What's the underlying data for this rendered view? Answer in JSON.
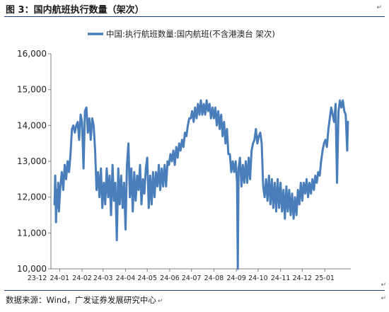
{
  "figure": {
    "title": "图 3：国内航班执行数量（架次）",
    "source": "数据来源：Wind，广发证券发展研究中心",
    "para_mark": "↵"
  },
  "chart_data": {
    "type": "line",
    "series": [
      {
        "name": "中国:执行航班数量:国内航班(不含港澳台 架次)",
        "color": "#4a7ebb",
        "points": [
          [
            "2023-12-25",
            11800
          ],
          [
            "2023-12-26",
            12600
          ],
          [
            "2023-12-27",
            11300
          ],
          [
            "2023-12-28",
            12200
          ],
          [
            "2023-12-29",
            11700
          ],
          [
            "2023-12-30",
            12400
          ],
          [
            "2023-12-31",
            11600
          ],
          [
            "2024-01-02",
            12300
          ],
          [
            "2024-01-04",
            12700
          ],
          [
            "2024-01-06",
            12200
          ],
          [
            "2024-01-08",
            12900
          ],
          [
            "2024-01-10",
            12500
          ],
          [
            "2024-01-12",
            13000
          ],
          [
            "2024-01-14",
            12700
          ],
          [
            "2024-01-16",
            13200
          ],
          [
            "2024-01-18",
            13900
          ],
          [
            "2024-01-20",
            14000
          ],
          [
            "2024-01-22",
            13800
          ],
          [
            "2024-01-24",
            14000
          ],
          [
            "2024-01-26",
            14100
          ],
          [
            "2024-01-28",
            13600
          ],
          [
            "2024-01-30",
            14300
          ],
          [
            "2024-02-01",
            14100
          ],
          [
            "2024-02-03",
            12800
          ],
          [
            "2024-02-05",
            14400
          ],
          [
            "2024-02-07",
            14500
          ],
          [
            "2024-02-09",
            13800
          ],
          [
            "2024-02-11",
            14200
          ],
          [
            "2024-02-13",
            13600
          ],
          [
            "2024-02-15",
            14200
          ],
          [
            "2024-02-17",
            14000
          ],
          [
            "2024-02-19",
            13300
          ],
          [
            "2024-02-21",
            12200
          ],
          [
            "2024-02-23",
            12700
          ],
          [
            "2024-02-25",
            12000
          ],
          [
            "2024-02-27",
            12800
          ],
          [
            "2024-02-29",
            11700
          ],
          [
            "2024-03-02",
            12400
          ],
          [
            "2024-03-04",
            11800
          ],
          [
            "2024-03-06",
            12800
          ],
          [
            "2024-03-08",
            12000
          ],
          [
            "2024-03-10",
            12600
          ],
          [
            "2024-03-12",
            11500
          ],
          [
            "2024-03-14",
            12900
          ],
          [
            "2024-03-16",
            11900
          ],
          [
            "2024-03-18",
            12400
          ],
          [
            "2024-03-20",
            10800
          ],
          [
            "2024-03-22",
            12800
          ],
          [
            "2024-03-24",
            11800
          ],
          [
            "2024-03-26",
            12600
          ],
          [
            "2024-03-28",
            11700
          ],
          [
            "2024-03-30",
            12400
          ],
          [
            "2024-04-01",
            11100
          ],
          [
            "2024-04-03",
            12900
          ],
          [
            "2024-04-05",
            13500
          ],
          [
            "2024-04-07",
            12000
          ],
          [
            "2024-04-09",
            12800
          ],
          [
            "2024-04-11",
            11600
          ],
          [
            "2024-04-13",
            12700
          ],
          [
            "2024-04-15",
            11900
          ],
          [
            "2024-04-17",
            12600
          ],
          [
            "2024-04-19",
            12200
          ],
          [
            "2024-04-21",
            12900
          ],
          [
            "2024-04-23",
            11800
          ],
          [
            "2024-04-25",
            12500
          ],
          [
            "2024-04-27",
            12100
          ],
          [
            "2024-04-29",
            12800
          ],
          [
            "2024-05-01",
            13100
          ],
          [
            "2024-05-03",
            11700
          ],
          [
            "2024-05-05",
            12600
          ],
          [
            "2024-05-07",
            11800
          ],
          [
            "2024-05-09",
            12700
          ],
          [
            "2024-05-11",
            12000
          ],
          [
            "2024-05-13",
            12700
          ],
          [
            "2024-05-15",
            12300
          ],
          [
            "2024-05-17",
            12900
          ],
          [
            "2024-05-19",
            12200
          ],
          [
            "2024-05-21",
            12800
          ],
          [
            "2024-05-23",
            12300
          ],
          [
            "2024-05-25",
            12900
          ],
          [
            "2024-05-27",
            12300
          ],
          [
            "2024-05-29",
            13000
          ],
          [
            "2024-05-31",
            12900
          ],
          [
            "2024-06-02",
            13200
          ],
          [
            "2024-06-04",
            13000
          ],
          [
            "2024-06-06",
            13300
          ],
          [
            "2024-06-08",
            12900
          ],
          [
            "2024-06-10",
            13400
          ],
          [
            "2024-06-12",
            13100
          ],
          [
            "2024-06-14",
            13500
          ],
          [
            "2024-06-16",
            13300
          ],
          [
            "2024-06-18",
            13600
          ],
          [
            "2024-06-20",
            13400
          ],
          [
            "2024-06-22",
            13800
          ],
          [
            "2024-06-24",
            13700
          ],
          [
            "2024-06-26",
            14000
          ],
          [
            "2024-06-28",
            14200
          ],
          [
            "2024-06-30",
            14200
          ],
          [
            "2024-07-02",
            14400
          ],
          [
            "2024-07-04",
            14100
          ],
          [
            "2024-07-06",
            14500
          ],
          [
            "2024-07-08",
            14200
          ],
          [
            "2024-07-10",
            14600
          ],
          [
            "2024-07-12",
            14300
          ],
          [
            "2024-07-14",
            14700
          ],
          [
            "2024-07-16",
            14300
          ],
          [
            "2024-07-18",
            14600
          ],
          [
            "2024-07-20",
            14300
          ],
          [
            "2024-07-22",
            14700
          ],
          [
            "2024-07-24",
            14400
          ],
          [
            "2024-07-26",
            14600
          ],
          [
            "2024-07-28",
            14200
          ],
          [
            "2024-07-30",
            14500
          ],
          [
            "2024-08-01",
            14200
          ],
          [
            "2024-08-03",
            14500
          ],
          [
            "2024-08-05",
            14000
          ],
          [
            "2024-08-07",
            14400
          ],
          [
            "2024-08-09",
            13900
          ],
          [
            "2024-08-11",
            14300
          ],
          [
            "2024-08-13",
            13700
          ],
          [
            "2024-08-15",
            14100
          ],
          [
            "2024-08-17",
            13500
          ],
          [
            "2024-08-19",
            13900
          ],
          [
            "2024-08-21",
            13200
          ],
          [
            "2024-08-23",
            13200
          ],
          [
            "2024-08-25",
            12700
          ],
          [
            "2024-08-27",
            13000
          ],
          [
            "2024-08-29",
            12700
          ],
          [
            "2024-08-31",
            13000
          ],
          [
            "2024-09-02",
            12400
          ],
          [
            "2024-09-03",
            10000
          ],
          [
            "2024-09-04",
            12800
          ],
          [
            "2024-09-06",
            13100
          ],
          [
            "2024-09-08",
            12300
          ],
          [
            "2024-09-10",
            12900
          ],
          [
            "2024-09-12",
            12400
          ],
          [
            "2024-09-14",
            13000
          ],
          [
            "2024-09-16",
            12400
          ],
          [
            "2024-09-18",
            13100
          ],
          [
            "2024-09-20",
            12500
          ],
          [
            "2024-09-22",
            13300
          ],
          [
            "2024-09-24",
            13500
          ],
          [
            "2024-09-26",
            13600
          ],
          [
            "2024-09-28",
            13900
          ],
          [
            "2024-09-30",
            13500
          ],
          [
            "2024-10-02",
            13700
          ],
          [
            "2024-10-04",
            13800
          ],
          [
            "2024-10-06",
            13500
          ],
          [
            "2024-10-08",
            12300
          ],
          [
            "2024-10-10",
            12000
          ],
          [
            "2024-10-12",
            12500
          ],
          [
            "2024-10-14",
            11900
          ],
          [
            "2024-10-16",
            12600
          ],
          [
            "2024-10-18",
            11800
          ],
          [
            "2024-10-20",
            12500
          ],
          [
            "2024-10-22",
            11700
          ],
          [
            "2024-10-24",
            12400
          ],
          [
            "2024-10-26",
            11600
          ],
          [
            "2024-10-28",
            12500
          ],
          [
            "2024-10-30",
            11700
          ],
          [
            "2024-11-01",
            12400
          ],
          [
            "2024-11-03",
            11600
          ],
          [
            "2024-11-05",
            12200
          ],
          [
            "2024-11-07",
            11400
          ],
          [
            "2024-11-09",
            12300
          ],
          [
            "2024-11-11",
            11600
          ],
          [
            "2024-11-13",
            12200
          ],
          [
            "2024-11-15",
            11500
          ],
          [
            "2024-11-17",
            12100
          ],
          [
            "2024-11-19",
            11400
          ],
          [
            "2024-11-21",
            12000
          ],
          [
            "2024-11-23",
            11500
          ],
          [
            "2024-11-25",
            12200
          ],
          [
            "2024-11-27",
            11800
          ],
          [
            "2024-11-29",
            12400
          ],
          [
            "2024-12-01",
            11900
          ],
          [
            "2024-12-03",
            12400
          ],
          [
            "2024-12-05",
            12100
          ],
          [
            "2024-12-07",
            12500
          ],
          [
            "2024-12-09",
            12000
          ],
          [
            "2024-12-11",
            12400
          ],
          [
            "2024-12-13",
            12100
          ],
          [
            "2024-12-15",
            12500
          ],
          [
            "2024-12-17",
            12200
          ],
          [
            "2024-12-19",
            12600
          ],
          [
            "2024-12-21",
            12400
          ],
          [
            "2024-12-23",
            12700
          ],
          [
            "2024-12-25",
            12600
          ],
          [
            "2024-12-27",
            13000
          ],
          [
            "2024-12-29",
            13300
          ],
          [
            "2024-12-31",
            13500
          ],
          [
            "2025-01-02",
            13600
          ],
          [
            "2025-01-04",
            13400
          ],
          [
            "2025-01-06",
            13900
          ],
          [
            "2025-01-08",
            14200
          ],
          [
            "2025-01-10",
            14500
          ],
          [
            "2025-01-12",
            14300
          ],
          [
            "2025-01-14",
            14100
          ],
          [
            "2025-01-16",
            14600
          ],
          [
            "2025-01-18",
            12400
          ],
          [
            "2025-01-20",
            14400
          ],
          [
            "2025-01-22",
            14700
          ],
          [
            "2025-01-24",
            14500
          ],
          [
            "2025-01-26",
            14700
          ],
          [
            "2025-01-28",
            14400
          ],
          [
            "2025-01-30",
            14300
          ],
          [
            "2025-02-01",
            13300
          ],
          [
            "2025-02-02",
            14100
          ]
        ]
      }
    ],
    "x_tick_labels": [
      "23-12",
      "24-01",
      "24-02",
      "24-03",
      "24-04",
      "24-05",
      "24-06",
      "24-07",
      "24-08",
      "24-09",
      "24-10",
      "24-11",
      "24-12",
      "25-01"
    ],
    "x_tick_dates": [
      "2023-12-01",
      "2024-01-01",
      "2024-02-01",
      "2024-03-01",
      "2024-04-01",
      "2024-05-01",
      "2024-06-01",
      "2024-07-01",
      "2024-08-01",
      "2024-09-01",
      "2024-10-01",
      "2024-11-01",
      "2024-12-01",
      "2025-01-01"
    ],
    "xlim": [
      "2023-12-20",
      "2025-02-06"
    ],
    "y_ticks": [
      10000,
      11000,
      12000,
      13000,
      14000,
      15000,
      16000
    ],
    "y_tick_labels": [
      "10,000",
      "11,000",
      "12,000",
      "13,000",
      "14,000",
      "15,000",
      "16,000"
    ],
    "ylim": [
      10000,
      16000
    ],
    "grid": false,
    "legend_position": "top"
  }
}
